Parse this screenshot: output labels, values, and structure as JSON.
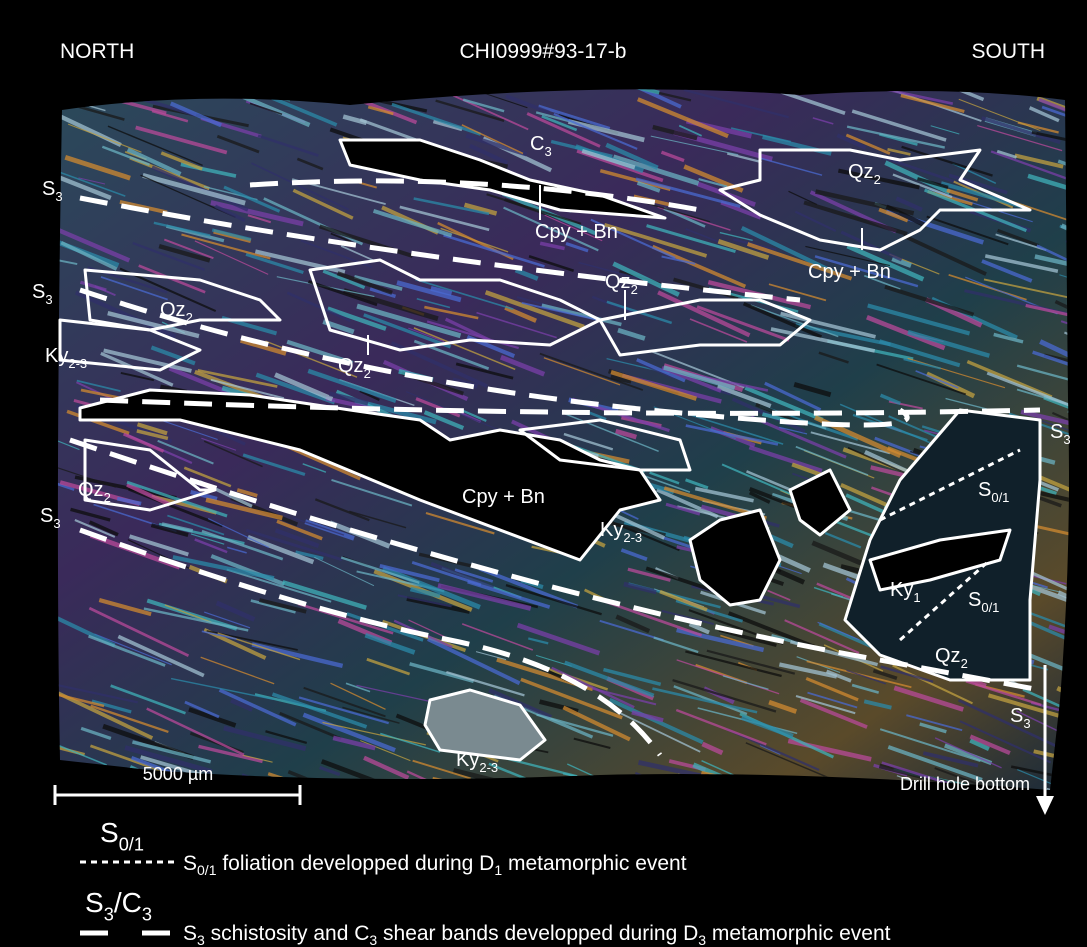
{
  "header": {
    "north": "NORTH",
    "sample": "CHI0999#93-17-b",
    "south": "SOUTH"
  },
  "annotations": [
    {
      "text": "C",
      "sub": "3"
    },
    {
      "text": "S",
      "sub": "3"
    },
    {
      "text": "Qz",
      "sub": "2"
    },
    {
      "text": "Cpy + Bn"
    },
    {
      "text": "Cpy + Bn"
    },
    {
      "text": "S",
      "sub": "3"
    },
    {
      "text": "Qz",
      "sub": "2"
    },
    {
      "text": "Qz",
      "sub": "2"
    },
    {
      "text": "Ky",
      "sub": "2-3"
    },
    {
      "text": "Qz",
      "sub": "2"
    },
    {
      "text": "S",
      "sub": "3"
    },
    {
      "text": "S",
      "sub": "3"
    },
    {
      "text": "Qz",
      "sub": "2"
    },
    {
      "text": "Cpy + Bn"
    },
    {
      "text": "Ky",
      "sub": "2-3"
    },
    {
      "text": "S",
      "sub": "0/1"
    },
    {
      "text": "Ky",
      "sub": "1"
    },
    {
      "text": "S",
      "sub": "0/1"
    },
    {
      "text": "Qz",
      "sub": "2"
    },
    {
      "text": "S",
      "sub": "3"
    },
    {
      "text": "Ky",
      "sub": "2-3"
    }
  ],
  "scale_bar": "5000 µm",
  "direction": "Drill hole bottom",
  "legend": [
    {
      "symbol": {
        "text": "S",
        "sub": "0/1"
      },
      "parts": [
        {
          "text": "S"
        },
        {
          "sub": "0/1"
        },
        {
          "text": " foliation developped during D"
        },
        {
          "sub": "1"
        },
        {
          "text": " metamorphic event"
        }
      ]
    },
    {
      "symbol": {
        "text": "S",
        "sub": "3",
        "text2": "/C",
        "sub2": "3"
      },
      "parts": [
        {
          "text": "S"
        },
        {
          "sub": "3"
        },
        {
          "text": " schistosity and C"
        },
        {
          "sub": "3"
        },
        {
          "text": " shear bands developped during D"
        },
        {
          "sub": "3"
        },
        {
          "text": " metamorphic event"
        }
      ]
    }
  ]
}
